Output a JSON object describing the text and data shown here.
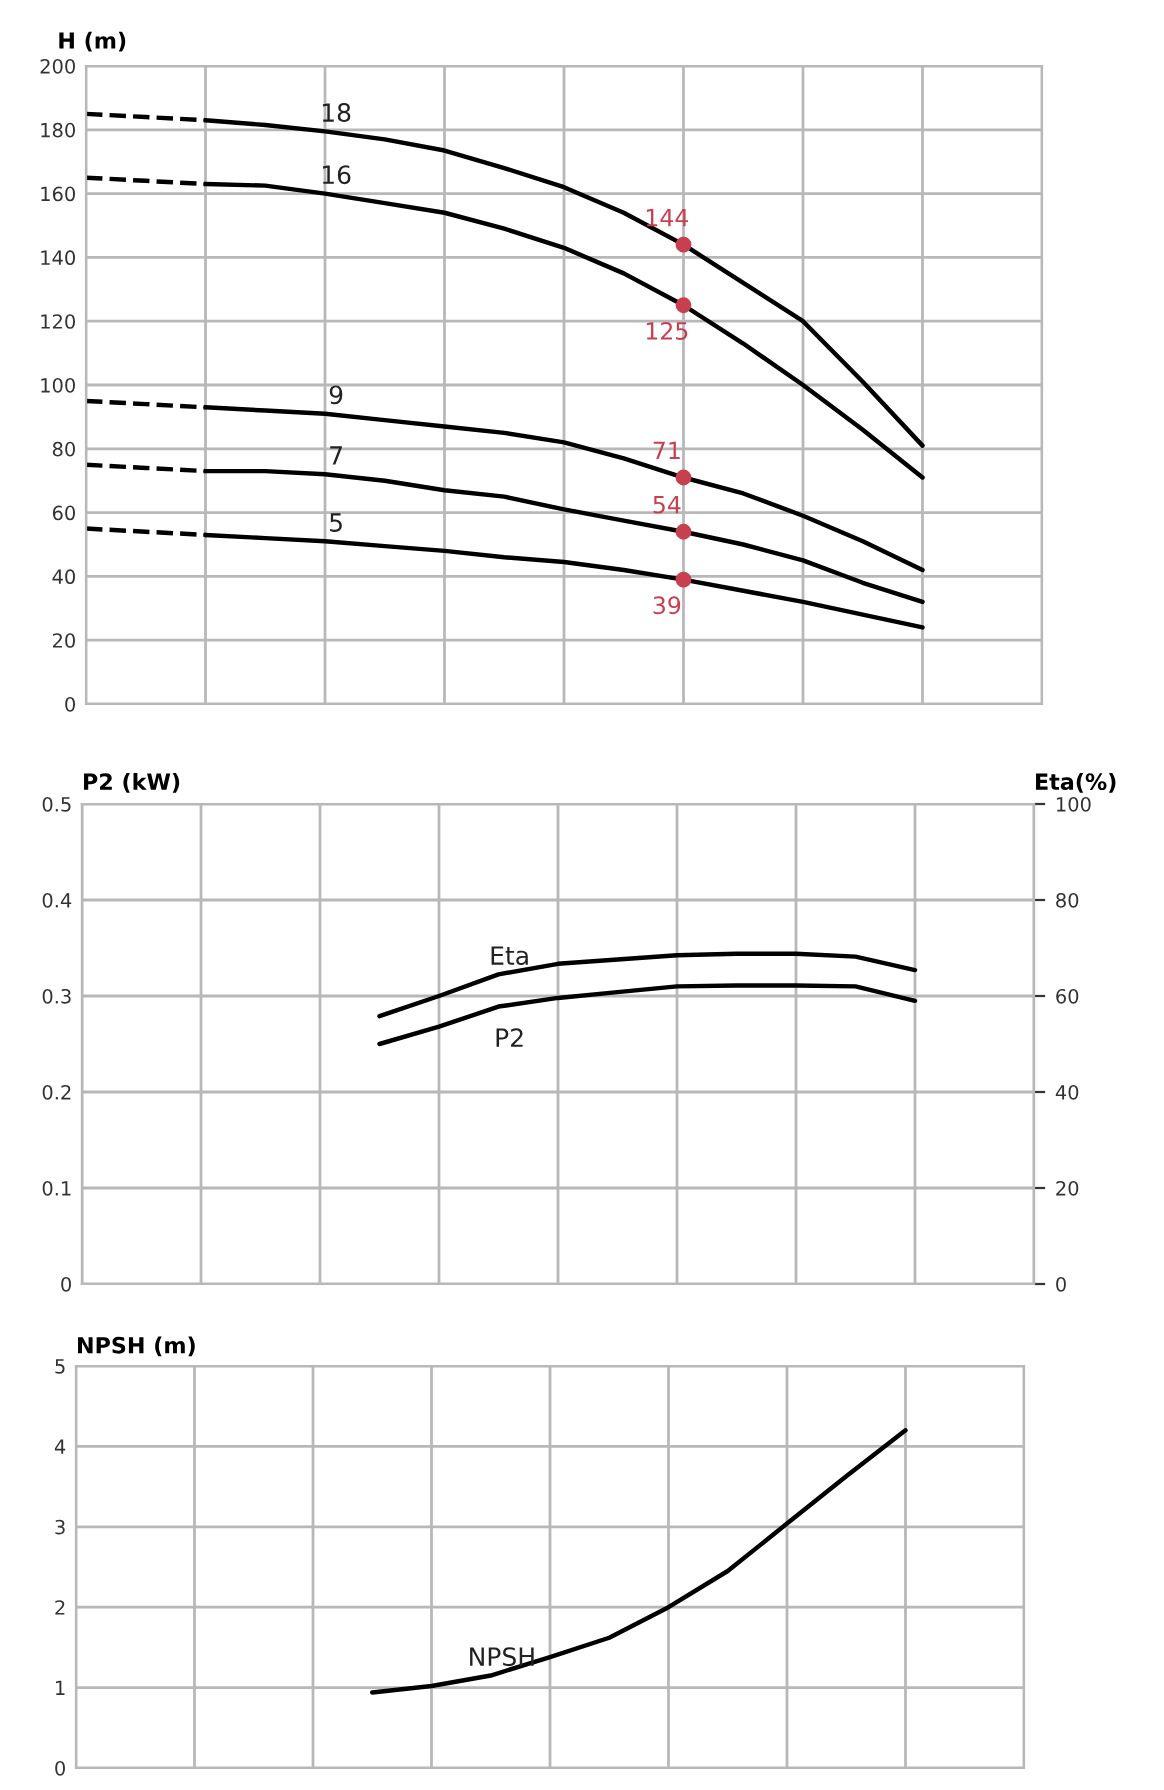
{
  "chart_data": [
    {
      "type": "line",
      "ylabel": "H (m)",
      "categories": [
        null,
        null,
        null,
        null,
        null,
        null,
        null,
        null,
        null,
        null,
        null,
        null,
        null,
        null,
        null,
        null,
        null
      ],
      "ylim": [
        0,
        200
      ],
      "yticks": [
        0,
        20,
        40,
        60,
        80,
        100,
        120,
        140,
        160,
        180,
        200
      ],
      "grid": true,
      "series": [
        {
          "name": "18",
          "color": "#000000",
          "values": [
            null,
            null,
            183,
            181.5,
            179.5,
            177,
            173.5,
            168,
            162,
            154,
            144,
            132,
            120,
            101,
            81,
            null,
            null
          ]
        },
        {
          "name": "16",
          "color": "#000000",
          "values": [
            null,
            null,
            163,
            162.5,
            160,
            157,
            154,
            149,
            143,
            135,
            125,
            113,
            100,
            86,
            71,
            null,
            null
          ]
        },
        {
          "name": "9",
          "color": "#000000",
          "values": [
            null,
            null,
            93,
            92,
            91,
            89,
            87,
            85,
            82,
            77,
            71,
            66,
            59,
            51,
            42,
            null,
            null
          ]
        },
        {
          "name": "7",
          "color": "#000000",
          "values": [
            null,
            null,
            73,
            73,
            72,
            70,
            67,
            65,
            61,
            57.5,
            54,
            50,
            45,
            38,
            32,
            null,
            null
          ]
        },
        {
          "name": "5",
          "color": "#000000",
          "values": [
            null,
            null,
            53,
            52,
            51,
            49.5,
            48,
            46,
            44.5,
            42,
            39,
            35.5,
            32,
            28,
            24,
            null,
            null
          ]
        },
        {
          "color": "#000000",
          "line_style": "dashed",
          "values": [
            185,
            184,
            183,
            null,
            null,
            null,
            null,
            null,
            null,
            null,
            null,
            null,
            null,
            null,
            null,
            null,
            null
          ]
        },
        {
          "color": "#000000",
          "line_style": "dashed",
          "values": [
            165,
            164,
            163,
            null,
            null,
            null,
            null,
            null,
            null,
            null,
            null,
            null,
            null,
            null,
            null,
            null,
            null
          ]
        },
        {
          "color": "#000000",
          "line_style": "dashed",
          "values": [
            95,
            94,
            93,
            null,
            null,
            null,
            null,
            null,
            null,
            null,
            null,
            null,
            null,
            null,
            null,
            null,
            null
          ]
        },
        {
          "color": "#000000",
          "line_style": "dashed",
          "values": [
            75,
            74,
            73,
            null,
            null,
            null,
            null,
            null,
            null,
            null,
            null,
            null,
            null,
            null,
            null,
            null,
            null
          ]
        },
        {
          "color": "#000000",
          "line_style": "dashed",
          "values": [
            55,
            54,
            53,
            null,
            null,
            null,
            null,
            null,
            null,
            null,
            null,
            null,
            null,
            null,
            null,
            null,
            null
          ]
        },
        {
          "type": "scatter",
          "marker": "circle",
          "color": "#c8404f",
          "values": [
            null,
            null,
            null,
            null,
            null,
            null,
            null,
            null,
            null,
            null,
            144,
            null,
            null,
            null,
            null,
            null,
            null
          ],
          "value_labels": [
            null,
            null,
            null,
            null,
            null,
            null,
            null,
            null,
            null,
            null,
            "144",
            null,
            null,
            null,
            null,
            null,
            null
          ]
        },
        {
          "type": "scatter",
          "marker": "circle",
          "color": "#c8404f",
          "values": [
            null,
            null,
            null,
            null,
            null,
            null,
            null,
            null,
            null,
            null,
            125,
            null,
            null,
            null,
            null,
            null,
            null
          ],
          "value_labels": [
            null,
            null,
            null,
            null,
            null,
            null,
            null,
            null,
            null,
            null,
            "125",
            null,
            null,
            null,
            null,
            null,
            null
          ]
        },
        {
          "type": "scatter",
          "marker": "circle",
          "color": "#c8404f",
          "values": [
            null,
            null,
            null,
            null,
            null,
            null,
            null,
            null,
            null,
            null,
            71,
            null,
            null,
            null,
            null,
            null,
            null
          ],
          "value_labels": [
            null,
            null,
            null,
            null,
            null,
            null,
            null,
            null,
            null,
            null,
            "71",
            null,
            null,
            null,
            null,
            null,
            null
          ]
        },
        {
          "type": "scatter",
          "marker": "circle",
          "color": "#c8404f",
          "values": [
            null,
            null,
            null,
            null,
            null,
            null,
            null,
            null,
            null,
            null,
            54,
            null,
            null,
            null,
            null,
            null,
            null
          ],
          "value_labels": [
            null,
            null,
            null,
            null,
            null,
            null,
            null,
            null,
            null,
            null,
            "54",
            null,
            null,
            null,
            null,
            null,
            null
          ]
        },
        {
          "type": "scatter",
          "marker": "circle",
          "color": "#c8404f",
          "values": [
            null,
            null,
            null,
            null,
            null,
            null,
            null,
            null,
            null,
            null,
            39,
            null,
            null,
            null,
            null,
            null,
            null
          ],
          "value_labels": [
            null,
            null,
            null,
            null,
            null,
            null,
            null,
            null,
            null,
            null,
            "39",
            null,
            null,
            null,
            null,
            null,
            null
          ]
        }
      ]
    },
    {
      "type": "line",
      "ylabel": "P2 (kW)",
      "y2label": "Eta(%)",
      "categories": [
        null,
        null,
        null,
        null,
        null,
        null,
        null,
        null,
        null,
        null,
        null,
        null,
        null,
        null,
        null,
        null,
        null
      ],
      "ylim": [
        0,
        0.5
      ],
      "yticks": [
        0,
        0.1,
        0.2,
        0.3,
        0.4,
        0.5
      ],
      "y2lim": [
        0,
        100
      ],
      "y2ticks": [
        0,
        20,
        40,
        60,
        80,
        100
      ],
      "grid": true,
      "series": [
        {
          "name": "Eta",
          "color": "#000000",
          "axis": "y2",
          "values": [
            null,
            null,
            null,
            null,
            null,
            55.8,
            60,
            64.5,
            66.7,
            67.6,
            68.5,
            68.8,
            68.8,
            68.2,
            65.4,
            null,
            null
          ]
        },
        {
          "name": "P2",
          "color": "#000000",
          "values": [
            null,
            null,
            null,
            null,
            null,
            0.25,
            0.268,
            0.289,
            0.298,
            0.304,
            0.31,
            0.311,
            0.311,
            0.31,
            0.295,
            null,
            null
          ]
        }
      ]
    },
    {
      "type": "line",
      "ylabel": "NPSH (m)",
      "categories": [
        null,
        null,
        null,
        null,
        null,
        null,
        null,
        null,
        null,
        null,
        null,
        null,
        null,
        null,
        null,
        null,
        null
      ],
      "ylim": [
        0,
        5
      ],
      "yticks": [
        0,
        1,
        2,
        3,
        4,
        5
      ],
      "grid": true,
      "series": [
        {
          "name": "NPSH",
          "color": "#000000",
          "values": [
            null,
            null,
            null,
            null,
            null,
            0.94,
            1.02,
            1.15,
            1.38,
            1.62,
            2.0,
            2.45,
            3.04,
            3.63,
            4.2,
            null,
            null
          ]
        }
      ]
    }
  ]
}
